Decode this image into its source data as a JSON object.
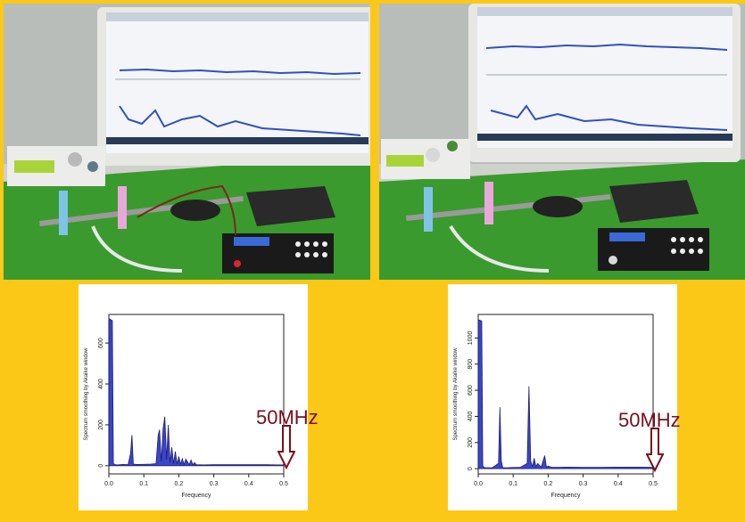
{
  "annotations": {
    "left_marker": "50MHz",
    "right_marker": "50MHz"
  },
  "chart_data": [
    {
      "type": "area",
      "title": "",
      "xlabel": "Frequency",
      "ylabel": "Spectrum smoothing by Akaike window",
      "xlim": [
        0.0,
        0.5
      ],
      "ylim": [
        -40,
        740
      ],
      "x_ticks": [
        "0.0",
        "0.1",
        "0.2",
        "0.3",
        "0.4",
        "0.5"
      ],
      "y_ticks": [
        "0",
        "200",
        "400",
        "600"
      ],
      "fill_color": "#3c44c8",
      "x": [
        0.0,
        0.005,
        0.01,
        0.013,
        0.018,
        0.025,
        0.04,
        0.055,
        0.062,
        0.066,
        0.07,
        0.08,
        0.1,
        0.12,
        0.135,
        0.141,
        0.145,
        0.15,
        0.155,
        0.16,
        0.165,
        0.17,
        0.175,
        0.18,
        0.185,
        0.19,
        0.195,
        0.2,
        0.205,
        0.21,
        0.215,
        0.22,
        0.23,
        0.235,
        0.24,
        0.245,
        0.25,
        0.27,
        0.3,
        0.35,
        0.4,
        0.45,
        0.48,
        0.5
      ],
      "y": [
        720,
        715,
        710,
        10,
        5,
        4,
        6,
        5,
        60,
        150,
        8,
        6,
        7,
        8,
        10,
        150,
        176,
        20,
        180,
        240,
        30,
        200,
        15,
        90,
        10,
        70,
        8,
        45,
        6,
        35,
        6,
        32,
        5,
        28,
        5,
        15,
        5,
        4,
        5,
        5,
        5,
        5,
        4,
        4
      ]
    },
    {
      "type": "area",
      "title": "",
      "xlabel": "Frequency",
      "ylabel": "Spectrum smoothing by Akaike window",
      "xlim": [
        0.0,
        0.5
      ],
      "ylim": [
        -40,
        1180
      ],
      "x_ticks": [
        "0.0",
        "0.1",
        "0.2",
        "0.3",
        "0.4",
        "0.5"
      ],
      "y_ticks": [
        "0",
        "200",
        "400",
        "600",
        "800",
        "1000"
      ],
      "fill_color": "#3c44c8",
      "x": [
        0.0,
        0.005,
        0.01,
        0.013,
        0.018,
        0.04,
        0.058,
        0.062,
        0.066,
        0.07,
        0.08,
        0.1,
        0.12,
        0.14,
        0.145,
        0.15,
        0.155,
        0.16,
        0.165,
        0.17,
        0.18,
        0.19,
        0.195,
        0.2,
        0.21,
        0.23,
        0.25,
        0.3,
        0.35,
        0.4,
        0.45,
        0.5
      ],
      "y": [
        1140,
        1135,
        1130,
        20,
        8,
        7,
        40,
        470,
        60,
        8,
        7,
        9,
        10,
        40,
        630,
        60,
        15,
        80,
        15,
        40,
        12,
        100,
        12,
        20,
        10,
        10,
        12,
        10,
        10,
        12,
        12,
        10
      ]
    }
  ]
}
